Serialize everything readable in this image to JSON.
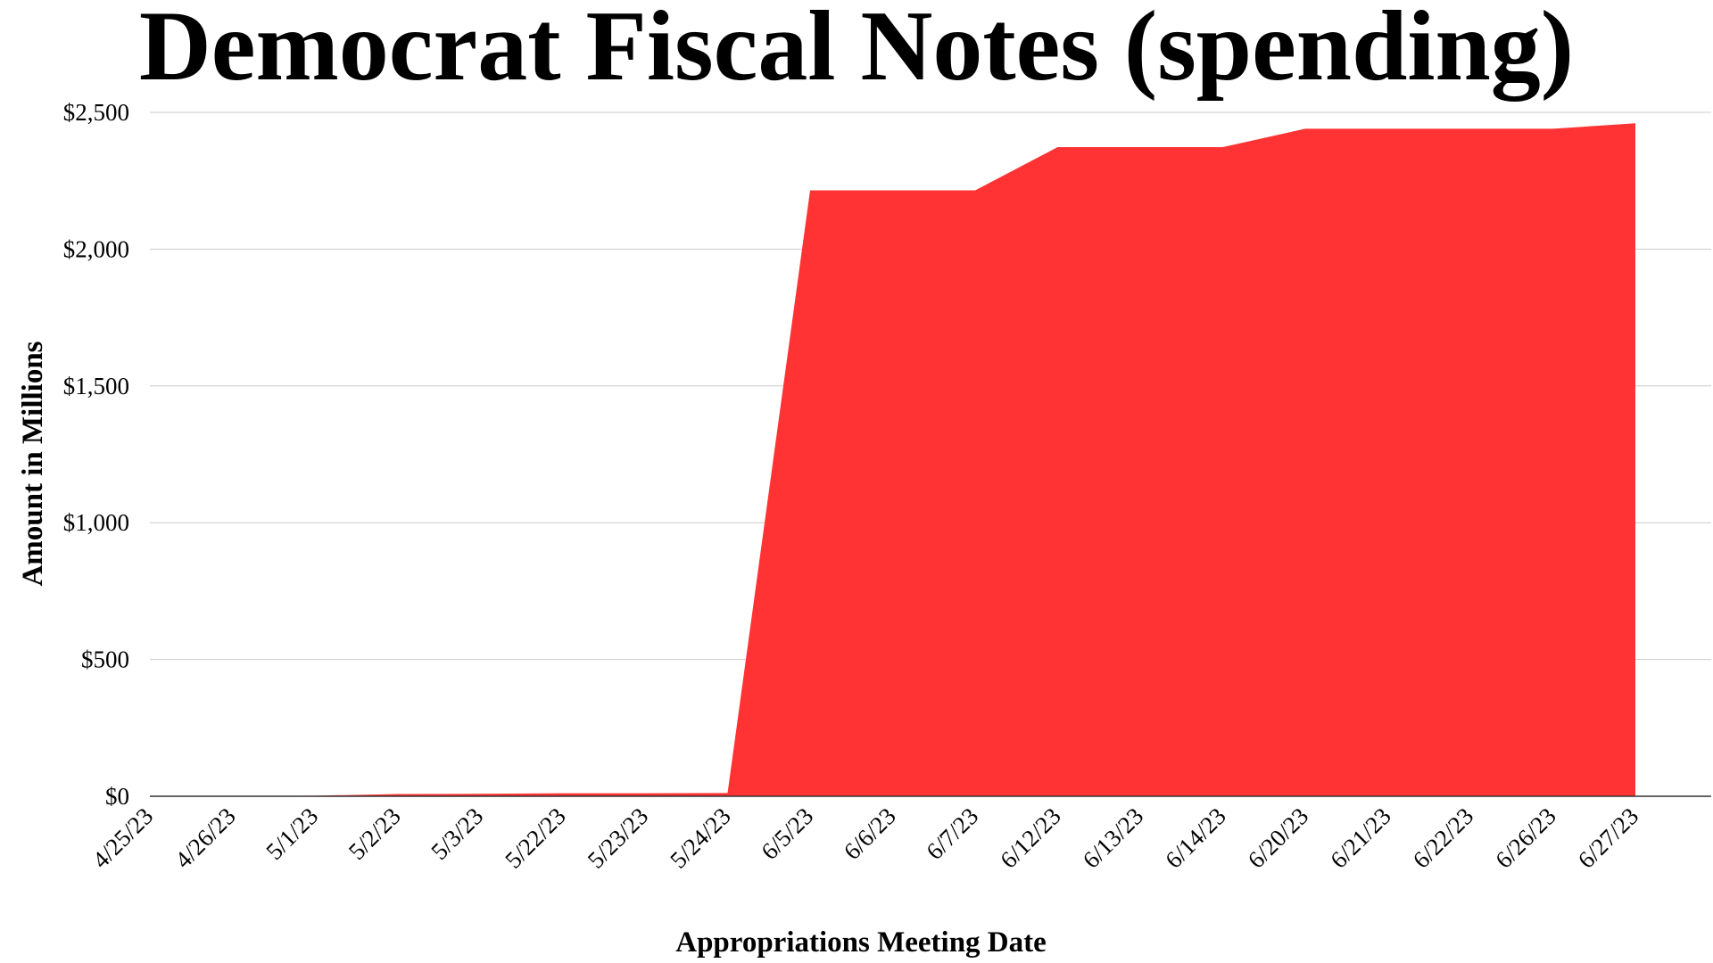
{
  "chart_data": {
    "type": "area",
    "title": "Democrat Fiscal Notes (spending)",
    "xlabel": "Appropriations Meeting Date",
    "ylabel": "Amount in Millions",
    "categories": [
      "4/25/23",
      "4/26/23",
      "5/1/23",
      "5/2/23",
      "5/3/23",
      "5/22/23",
      "5/23/23",
      "5/24/23",
      "6/5/23",
      "6/6/23",
      "6/7/23",
      "6/12/23",
      "6/13/23",
      "6/14/23",
      "6/20/23",
      "6/21/23",
      "6/22/23",
      "6/26/23",
      "6/27/23"
    ],
    "series": [
      {
        "values": [
          0,
          0,
          2,
          8,
          9,
          11,
          11,
          12,
          2215,
          2215,
          2215,
          2373,
          2373,
          2373,
          2440,
          2440,
          2440,
          2440,
          2460
        ],
        "color": "#ff3333"
      }
    ],
    "ylim": [
      0,
      2500
    ],
    "yticks": [
      0,
      500,
      1000,
      1500,
      2000,
      2500
    ],
    "ytick_labels": [
      "$0",
      "$500",
      "$1,000",
      "$1,500",
      "$2,000",
      "$2,500"
    ],
    "grid": true,
    "gridline_color": "#cccccc",
    "legend": "none"
  }
}
